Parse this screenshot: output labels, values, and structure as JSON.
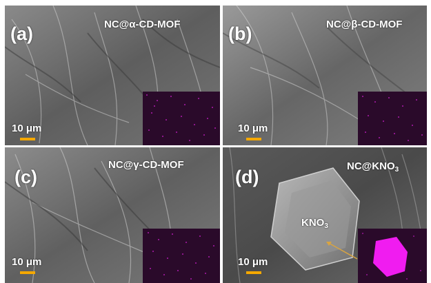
{
  "panels": [
    {
      "id": "a",
      "label": "(a)",
      "title": "NC@α-CD-MOF",
      "scale": "10 μm"
    },
    {
      "id": "b",
      "label": "(b)",
      "title": "NC@β-CD-MOF",
      "scale": "10 μm"
    },
    {
      "id": "c",
      "label": "(c)",
      "title": "NC@γ-CD-MOF",
      "scale": "10 μm"
    },
    {
      "id": "d",
      "label": "(d)",
      "title_main": "NC@KNO",
      "title_sub": "3",
      "scale": "10 μm",
      "annotation_main": "KNO",
      "annotation_sub": "3"
    }
  ],
  "colors": {
    "scale_bar": "#f5a800",
    "inset_background": "#2a0a2a",
    "inset_signal": "#e020e0",
    "arrow": "#d9a441",
    "label_text": "#ffffff"
  }
}
